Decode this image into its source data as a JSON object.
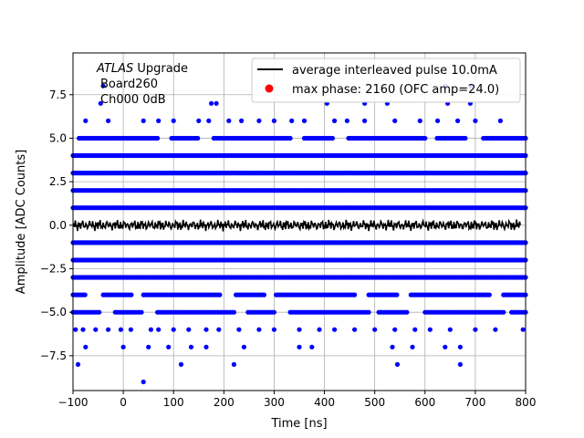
{
  "chart_data": {
    "type": "scatter",
    "xlabel": "Time [ns]",
    "ylabel": "Amplitude [ADC Counts]",
    "xlim": [
      -100,
      800
    ],
    "ylim": [
      -9.5,
      9.9
    ],
    "x_ticks": [
      -100,
      0,
      100,
      200,
      300,
      400,
      500,
      600,
      700,
      800
    ],
    "x_tick_labels": [
      "−100",
      "0",
      "100",
      "200",
      "300",
      "400",
      "500",
      "600",
      "700",
      "800"
    ],
    "y_ticks": [
      -7.5,
      -5.0,
      -2.5,
      0.0,
      2.5,
      5.0,
      7.5
    ],
    "y_tick_labels": [
      "−7.5",
      "−5.0",
      "−2.5",
      "0.0",
      "2.5",
      "5.0",
      "7.5"
    ],
    "grid": true,
    "legend_position": "top-right",
    "annotation": {
      "italic": "ATLAS",
      "rest": " Upgrade",
      "line2": "Board260",
      "line3": "Ch000 0dB"
    },
    "series": [
      {
        "name": "average interleaved pulse 10.0mA",
        "kind": "line",
        "color": "#000000",
        "x_range": [
          -100,
          790
        ],
        "level": 0.0,
        "noise_amplitude": 0.35
      },
      {
        "name": "max phase: 2160 (OFC amp=24.0)",
        "kind": "scatter",
        "color": "#ff0000",
        "legend_only": true
      },
      {
        "kind": "scatter",
        "color": "#0000ff",
        "dense_levels": [
          -3,
          -2,
          -1,
          1,
          2,
          3,
          4
        ],
        "medium_levels": [
          -5,
          -4,
          5
        ],
        "sparse_points": {
          "-6": [
            -95,
            -80,
            -55,
            -30,
            -5,
            15,
            55,
            70,
            100,
            130,
            165,
            190,
            230,
            270,
            300,
            350,
            390,
            420,
            460,
            500,
            540,
            580,
            610,
            650,
            700,
            740,
            795
          ],
          "-7": [
            -75,
            0,
            50,
            90,
            135,
            165,
            240,
            350,
            375,
            535,
            575,
            640,
            670
          ],
          "-8": [
            -90,
            115,
            220,
            545,
            670
          ],
          "-9": [
            40
          ],
          "6": [
            -75,
            -30,
            40,
            70,
            100,
            150,
            170,
            210,
            235,
            270,
            300,
            335,
            360,
            420,
            445,
            480,
            540,
            590,
            625,
            665,
            700,
            750
          ],
          "7": [
            -45,
            175,
            185,
            405,
            480,
            525,
            645,
            690
          ],
          "8": [
            -40,
            640,
            690
          ]
        }
      }
    ]
  }
}
